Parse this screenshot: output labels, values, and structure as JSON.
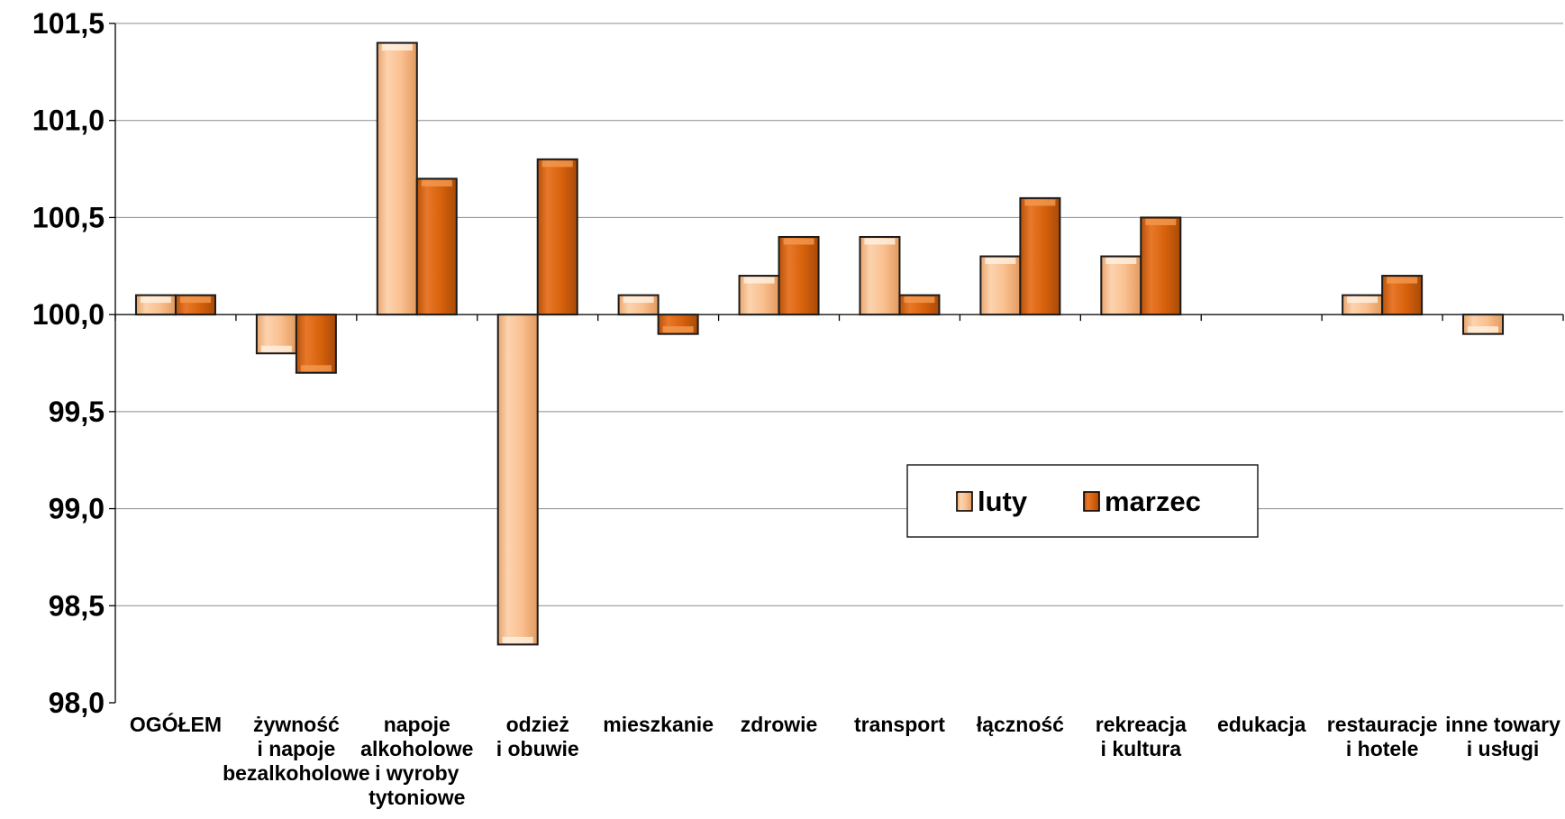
{
  "chart_data": {
    "type": "bar",
    "categories": [
      [
        "OGÓŁEM"
      ],
      [
        "żywność",
        "i napoje",
        "bezalkoholowe"
      ],
      [
        "napoje",
        "alkoholowe",
        "i wyroby",
        "tytoniowe"
      ],
      [
        "odzież",
        "i obuwie"
      ],
      [
        "mieszkanie"
      ],
      [
        "zdrowie"
      ],
      [
        "transport"
      ],
      [
        "łączność"
      ],
      [
        "rekreacja",
        "i kultura"
      ],
      [
        "edukacja"
      ],
      [
        "restauracje",
        "i hotele"
      ],
      [
        "inne towary",
        "i usługi"
      ]
    ],
    "series": [
      {
        "name": "luty",
        "color": "#FAC090",
        "values": [
          100.1,
          99.8,
          101.4,
          98.3,
          100.1,
          100.2,
          100.4,
          100.3,
          100.3,
          100.0,
          100.1,
          99.9
        ]
      },
      {
        "name": "marzec",
        "color": "#E46C0A",
        "values": [
          100.1,
          99.7,
          100.7,
          100.8,
          99.9,
          100.4,
          100.1,
          100.6,
          100.5,
          100.0,
          100.2,
          100.0
        ]
      }
    ],
    "baseline": 100.0,
    "ylim": [
      98.0,
      101.5
    ],
    "yticks": [
      "98,0",
      "98,5",
      "99,0",
      "99,5",
      "100,0",
      "100,5",
      "101,0",
      "101,5"
    ],
    "ytick_values": [
      98.0,
      98.5,
      99.0,
      99.5,
      100.0,
      100.5,
      101.0,
      101.5
    ],
    "grid": true,
    "legend": "inside-center-right",
    "title": "",
    "xlabel": "",
    "ylabel": ""
  }
}
